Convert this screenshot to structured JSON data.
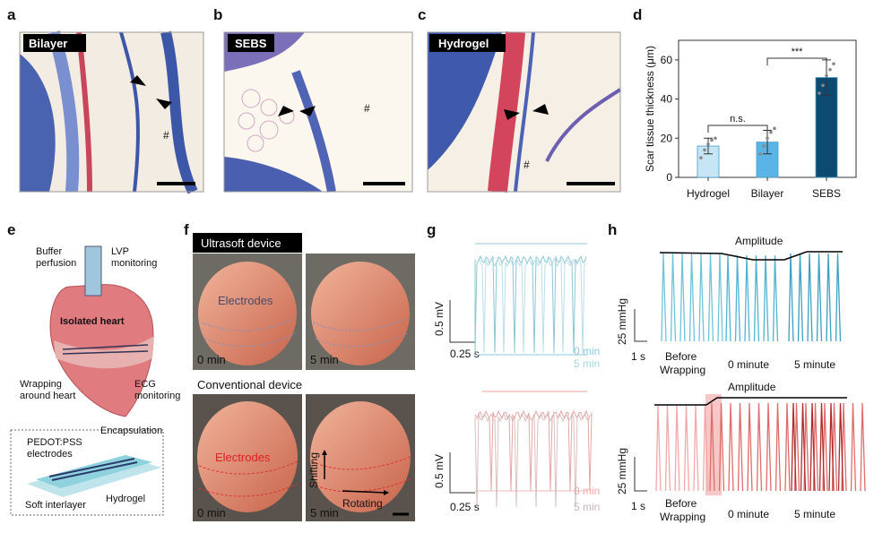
{
  "panels": {
    "a": {
      "letter": "a",
      "label": "Bilayer",
      "marker": "#"
    },
    "b": {
      "letter": "b",
      "label": "SEBS",
      "marker": "#"
    },
    "c": {
      "letter": "c",
      "label": "Hydrogel",
      "marker": "#"
    },
    "d": {
      "letter": "d"
    },
    "e": {
      "letter": "e",
      "buffer": [
        "Buffer",
        "perfusion"
      ],
      "lvp": [
        "LVP",
        "monitoring"
      ],
      "heart": "Isolated heart",
      "wrapping": [
        "Wrapping",
        "around heart"
      ],
      "ecg": [
        "ECG",
        "monitoring"
      ],
      "pedot": [
        "PEDOT:PSS",
        "electrodes"
      ],
      "encapsulation": "Encapsulation",
      "interlayer": "Soft interlayer",
      "hydrogel": "Hydrogel"
    },
    "f": {
      "letter": "f",
      "ultrasoft": "Ultrasoft device",
      "electrodes_top": "Electrodes",
      "t0_top": "0 min",
      "t5_top": "5 min",
      "conventional": "Conventional device",
      "electrodes_bottom": "Electrodes",
      "shifting": "Shifting",
      "rotating": "Rotating",
      "t0_bottom": "0 min",
      "t5_bottom": "5 min"
    },
    "g": {
      "letter": "g",
      "top": {
        "volt": "0.5 mV",
        "time": "0.25 s",
        "t0": "0 min",
        "t5": "5 min"
      },
      "bottom": {
        "volt": "0.5 mV",
        "time": "0.25 s",
        "t0": "0 min",
        "t5": "5 min"
      }
    },
    "h": {
      "letter": "h",
      "top": {
        "amplitude": "Amplitude",
        "pressure": "25 mmHg",
        "time": "1 s",
        "before": [
          "Before",
          "Wrapping"
        ],
        "m0": "0 minute",
        "m5": "5 minute"
      },
      "bottom": {
        "amplitude": "Amplitude",
        "pressure": "25 mmHg",
        "time": "1 s",
        "before": [
          "Before",
          "Wrapping"
        ],
        "m0": "0 minute",
        "m5": "5 minute"
      }
    }
  },
  "chart_data": {
    "type": "bar",
    "ylabel": "Scar tissue thickness (μm)",
    "categories": [
      "Hydrogel",
      "Bilayer",
      "SEBS"
    ],
    "values": [
      16,
      18,
      51
    ],
    "errors": [
      4,
      6,
      9
    ],
    "points": [
      [
        10,
        14,
        17,
        19,
        20
      ],
      [
        12,
        16,
        20,
        23,
        25
      ],
      [
        43,
        47,
        52,
        55,
        58
      ]
    ],
    "colors": [
      "#c6e5f5",
      "#5ab4e6",
      "#0d4a72"
    ],
    "ylim": [
      0,
      70
    ],
    "yticks": [
      0,
      20,
      40,
      60
    ],
    "significance": [
      "n.s.",
      "***"
    ]
  }
}
